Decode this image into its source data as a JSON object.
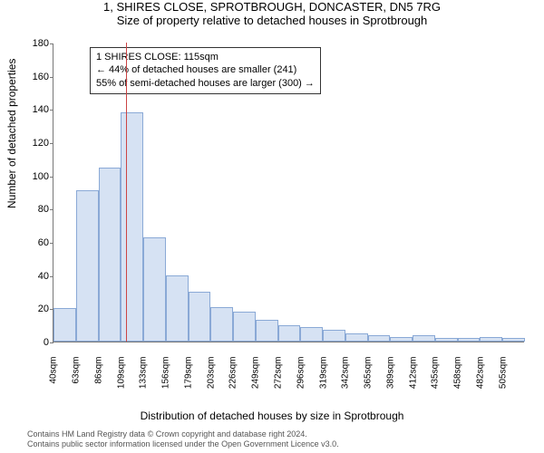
{
  "title": "1, SHIRES CLOSE, SPROTBROUGH, DONCASTER, DN5 7RG",
  "subtitle": "Size of property relative to detached houses in Sprotbrough",
  "chart": {
    "type": "histogram",
    "xlabel": "Distribution of detached houses by size in Sprotbrough",
    "ylabel": "Number of detached properties",
    "ylim": [
      0,
      180
    ],
    "ytick_step": 20,
    "xticks": [
      "40sqm",
      "63sqm",
      "86sqm",
      "109sqm",
      "133sqm",
      "156sqm",
      "179sqm",
      "203sqm",
      "226sqm",
      "249sqm",
      "272sqm",
      "296sqm",
      "319sqm",
      "342sqm",
      "365sqm",
      "389sqm",
      "412sqm",
      "435sqm",
      "458sqm",
      "482sqm",
      "505sqm"
    ],
    "values": [
      20,
      91,
      105,
      138,
      63,
      40,
      30,
      21,
      18,
      13,
      10,
      9,
      7,
      5,
      4,
      3,
      4,
      2,
      2,
      3,
      2
    ],
    "bar_fill": "#d6e2f3",
    "bar_border": "#8aa9d6",
    "background_color": "#ffffff",
    "axis_color": "#777777",
    "marker": {
      "bin_index": 3,
      "fraction_within_bin": 0.25,
      "color": "#cc4444"
    },
    "annotation": {
      "lines": [
        "1 SHIRES CLOSE: 115sqm",
        "← 44% of detached houses are smaller (241)",
        "55% of semi-detached houses are larger (300) →"
      ],
      "border": "#333333",
      "bg": "#ffffff",
      "fontsize": 11
    }
  },
  "footer_line1": "Contains HM Land Registry data © Crown copyright and database right 2024.",
  "footer_line2": "Contains public sector information licensed under the Open Government Licence v3.0."
}
